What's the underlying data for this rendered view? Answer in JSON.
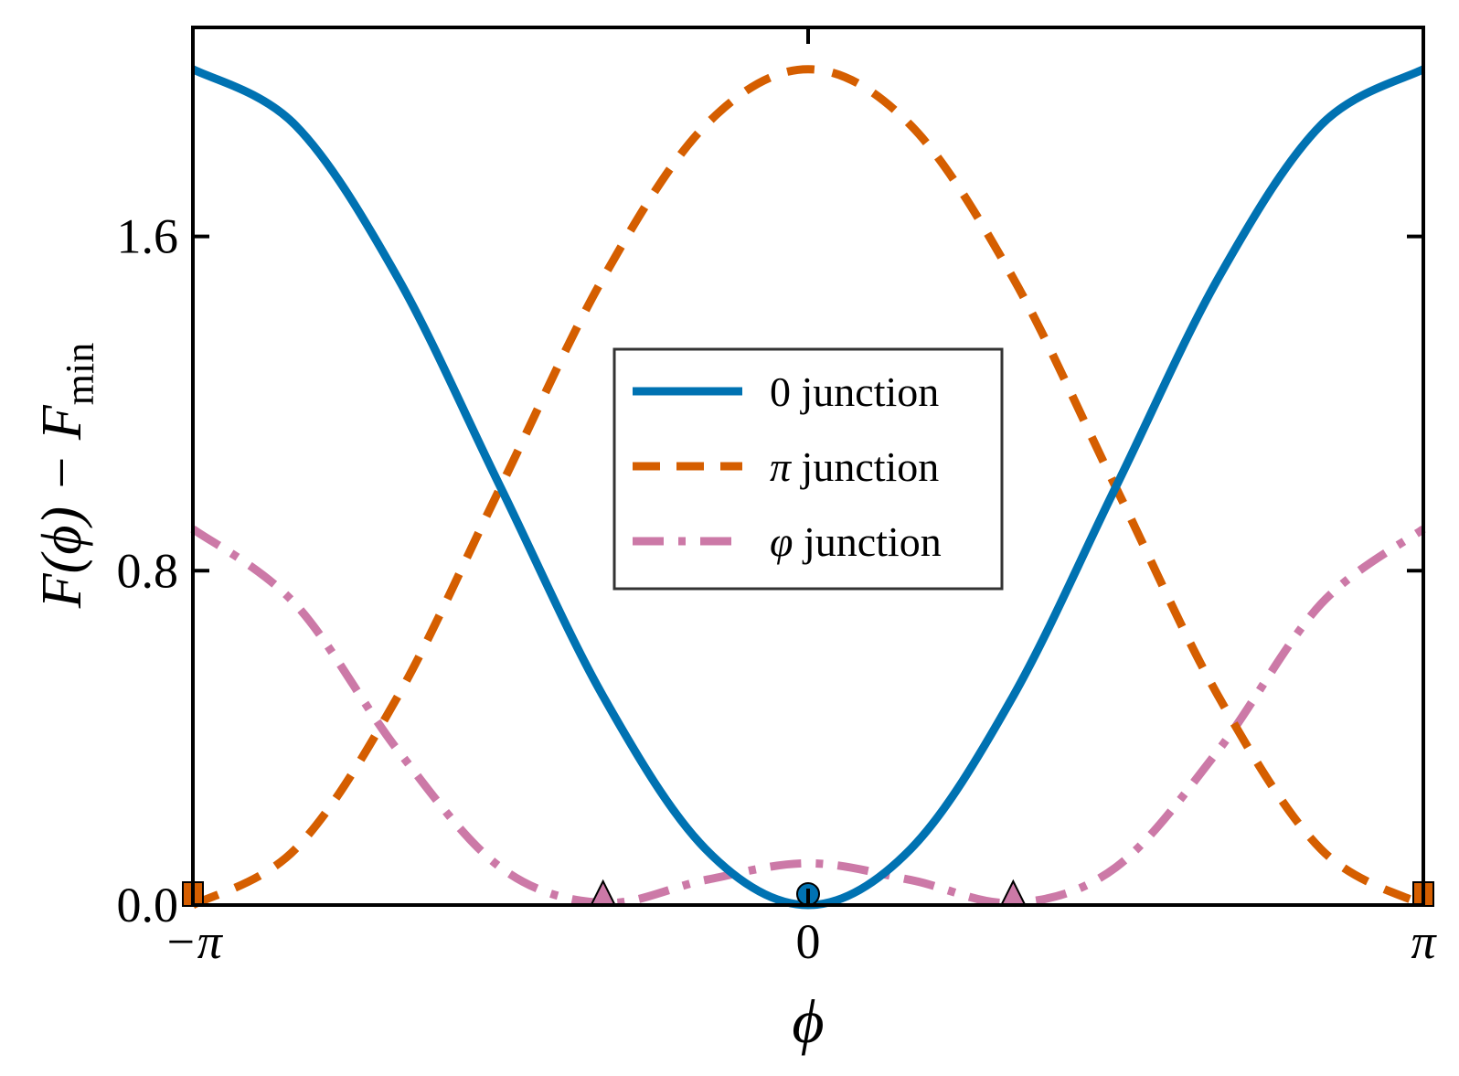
{
  "chart_data": {
    "type": "line",
    "title": "",
    "xlabel": "ϕ",
    "ylabel": "F(ϕ) − F",
    "ylabel_subscript": "min",
    "xlim": [
      -3.14159,
      3.14159
    ],
    "ylim": [
      0.0,
      2.1
    ],
    "grid": false,
    "legend_position": "center",
    "x_ticks": [
      {
        "value": -3.14159,
        "label": "−π"
      },
      {
        "value": 0,
        "label": "0"
      },
      {
        "value": 3.14159,
        "label": "π"
      }
    ],
    "y_ticks": [
      {
        "value": 0.0,
        "label": "0.0"
      },
      {
        "value": 0.8,
        "label": "0.8"
      },
      {
        "value": 1.6,
        "label": "1.6"
      }
    ],
    "series": [
      {
        "name": "0 junction",
        "style": "solid",
        "color": "#0072b2",
        "x": [
          -3.14159,
          -2.61799,
          -2.0944,
          -1.5708,
          -1.0472,
          -0.5236,
          0,
          0.5236,
          1.0472,
          1.5708,
          2.0944,
          2.61799,
          3.14159
        ],
        "y": [
          2.0,
          1.866,
          1.5,
          1.0,
          0.5,
          0.134,
          0.0,
          0.134,
          0.5,
          1.0,
          1.5,
          1.866,
          2.0
        ],
        "markers": [
          {
            "x": 0,
            "y": 0.0,
            "shape": "circle"
          }
        ]
      },
      {
        "name": "π junction",
        "style": "dashed",
        "color": "#d55e00",
        "x": [
          -3.14159,
          -2.61799,
          -2.0944,
          -1.5708,
          -1.0472,
          -0.5236,
          0,
          0.5236,
          1.0472,
          1.5708,
          2.0944,
          2.61799,
          3.14159
        ],
        "y": [
          0.0,
          0.134,
          0.5,
          1.0,
          1.5,
          1.866,
          2.0,
          1.866,
          1.5,
          1.0,
          0.5,
          0.134,
          0.0
        ],
        "markers": [
          {
            "x": -3.14159,
            "y": 0.0,
            "shape": "square"
          },
          {
            "x": 3.14159,
            "y": 0.0,
            "shape": "square"
          }
        ]
      },
      {
        "name": "φ junction",
        "style": "dashdot",
        "color": "#cc79a7",
        "x": [
          -3.14159,
          -2.61799,
          -2.0944,
          -1.5708,
          -1.0472,
          -0.5236,
          0,
          0.5236,
          1.0472,
          1.5708,
          2.0944,
          2.61799,
          3.14159
        ],
        "y": [
          0.9,
          0.72,
          0.37,
          0.09,
          0.005,
          0.06,
          0.1,
          0.06,
          0.005,
          0.09,
          0.37,
          0.72,
          0.9
        ],
        "markers": [
          {
            "x": -1.0472,
            "y": 0.0,
            "shape": "triangle"
          },
          {
            "x": 1.0472,
            "y": 0.0,
            "shape": "triangle"
          }
        ]
      }
    ]
  }
}
